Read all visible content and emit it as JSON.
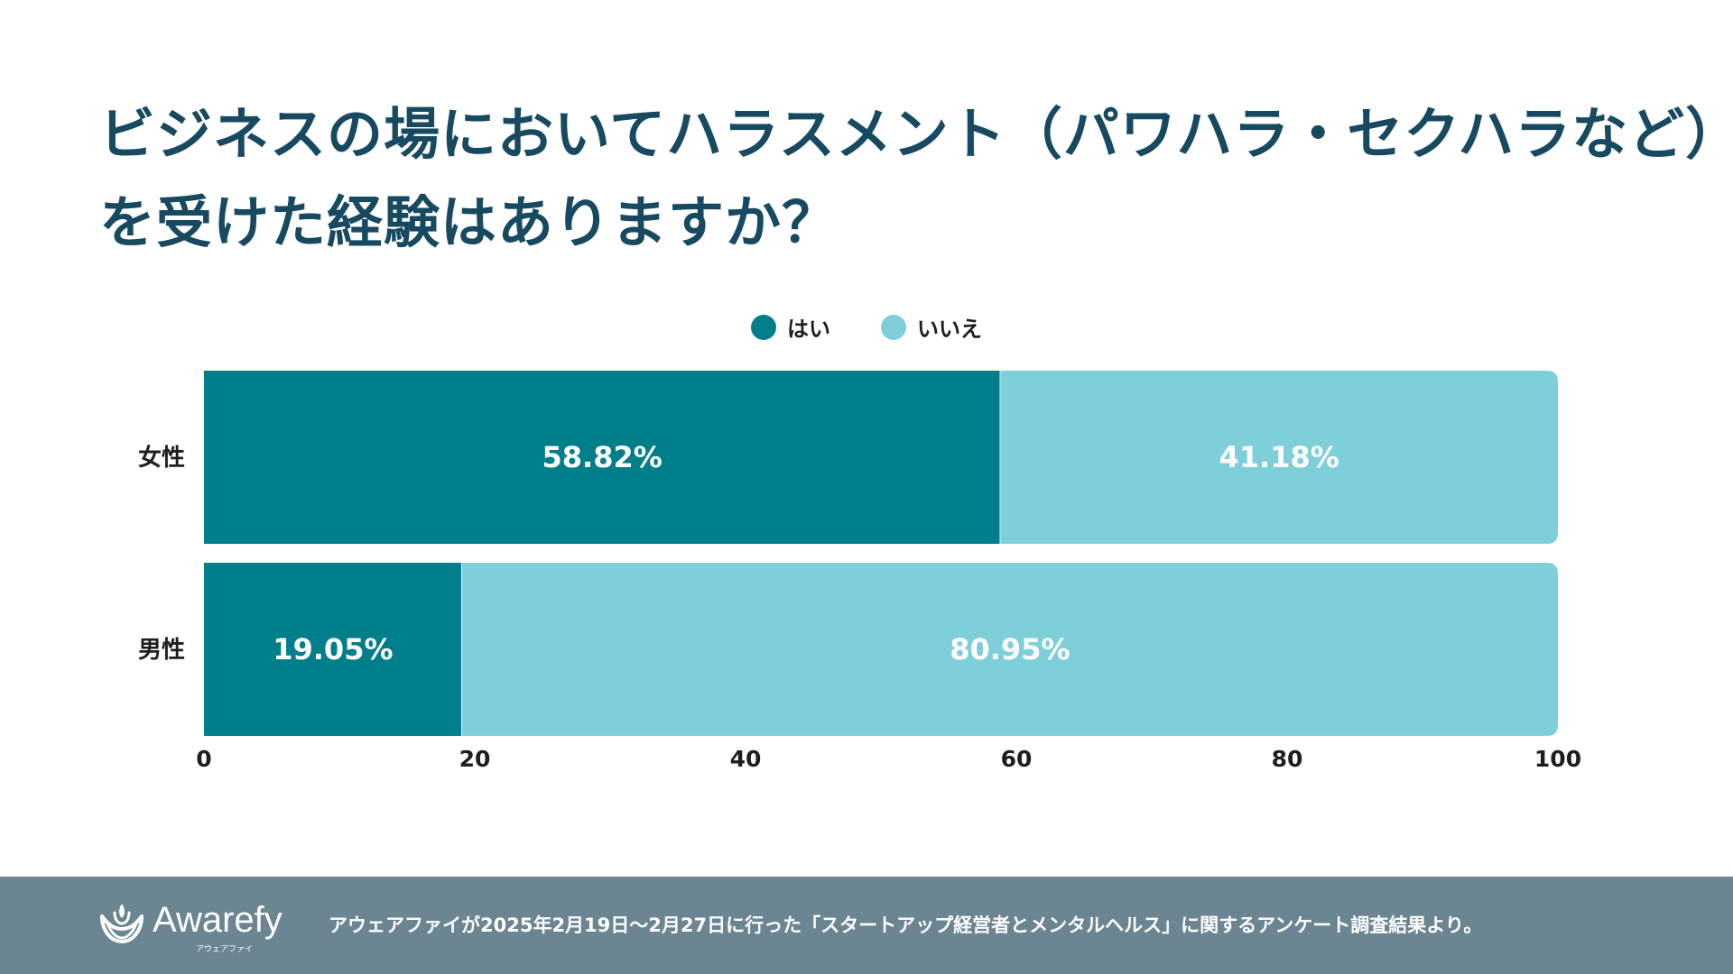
{
  "title": {
    "line1": "ビジネスの場においてハラスメント（パワハラ・セクハラなど）",
    "line2": "を受けた経験はありますか？"
  },
  "colors": {
    "title": "#174a61",
    "yes": "#007f8a",
    "no": "#7ecfd9",
    "footer_bg": "#6b8692"
  },
  "legend": [
    {
      "label": "はい",
      "color": "#007f8a"
    },
    {
      "label": "いいえ",
      "color": "#7ecfd9"
    }
  ],
  "chart_data": {
    "type": "bar",
    "orientation": "horizontal",
    "stacked": true,
    "categories": [
      "女性",
      "男性"
    ],
    "series": [
      {
        "name": "はい",
        "values": [
          58.82,
          19.05
        ],
        "labels": [
          "58.82%",
          "19.05%"
        ]
      },
      {
        "name": "いいえ",
        "values": [
          41.18,
          80.95
        ],
        "labels": [
          "41.18%",
          "80.95%"
        ]
      }
    ],
    "xlim": [
      0,
      100
    ],
    "xticks": [
      "0",
      "20",
      "40",
      "60",
      "80",
      "100"
    ],
    "grid": false,
    "legend_position": "top-center"
  },
  "footer": {
    "brand": "Awarefy",
    "brand_sub": "アウェアファイ",
    "note": "アウェアファイが2025年2月19日〜2月27日に行った「スタートアップ経営者とメンタルヘルス」に関するアンケート調査結果より。"
  }
}
